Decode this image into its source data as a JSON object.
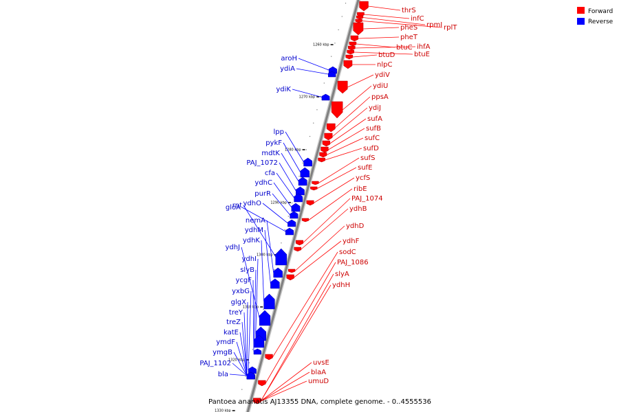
{
  "caption": "Pantoea ananatis AJ13355 DNA, complete genome. - 0..4555536",
  "legend": [
    {
      "label": "Forward",
      "color": "#ff0000"
    },
    {
      "label": "Reverse",
      "color": "#0000ff"
    }
  ],
  "colors": {
    "forward": "#ff0000",
    "reverse": "#0000ff",
    "axis": "#808080"
  },
  "ticks": [
    "1260 kbp",
    "1270 kbp",
    "1280 kbp",
    "1290 kbp",
    "1300 kbp",
    "1310 kbp",
    "1320 kbp",
    "1330 kbp"
  ],
  "forward_genes": [
    "thrS",
    "infC",
    "rpmI",
    "rplT",
    "pheS",
    "pheT",
    "btuC",
    "ihfA",
    "btuE",
    "btuD",
    "nlpC",
    "ydiV",
    "ydiU",
    "ppsA",
    "ydiJ",
    "sufA",
    "sufB",
    "sufC",
    "sufD",
    "sufS",
    "sufE",
    "ycfS",
    "ribE",
    "PAJ_1074",
    "ydhB",
    "ydhD",
    "ydhF",
    "sodC",
    "PAJ_1086",
    "slyA",
    "ydhH",
    "uvsE",
    "blaA",
    "umuD"
  ],
  "reverse_genes": [
    "aroH",
    "ydiA",
    "ydiK",
    "lpp",
    "pykF",
    "mdtK",
    "PAJ_1072",
    "cfa",
    "ydhC",
    "purR",
    "ydhO",
    "gloA",
    "rnt",
    "nemA",
    "ydhM",
    "ydhK",
    "ydhJ",
    "ydhI",
    "slyB",
    "ycgF",
    "yxbG",
    "glgX",
    "treY",
    "treZ",
    "katE",
    "ymdF",
    "ymgB",
    "PAJ_1102",
    "bla"
  ]
}
